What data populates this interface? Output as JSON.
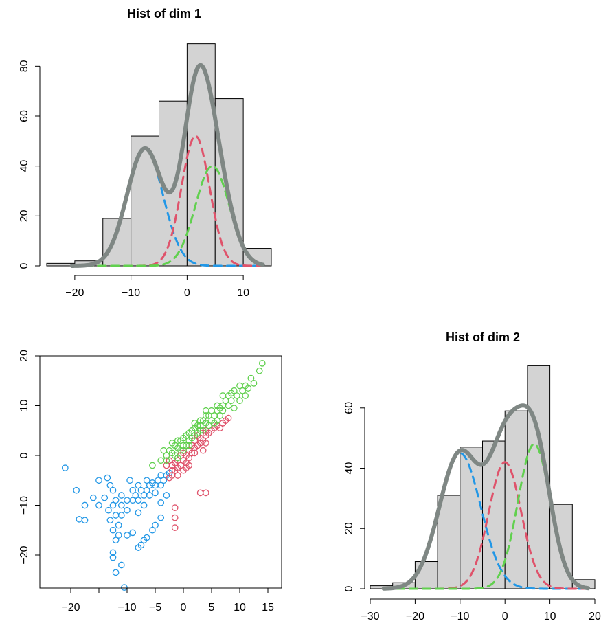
{
  "chart_data": [
    {
      "type": "bar",
      "title": "Hist of dim  1",
      "xlabel": "",
      "ylabel": "",
      "xlim": [
        -25,
        15
      ],
      "ylim": [
        0,
        90
      ],
      "xticks": [
        -20,
        -10,
        0,
        10
      ],
      "yticks": [
        0,
        20,
        40,
        60,
        80
      ],
      "bins": [
        {
          "x0": -25,
          "x1": -20,
          "count": 1
        },
        {
          "x0": -20,
          "x1": -15,
          "count": 2
        },
        {
          "x0": -15,
          "x1": -10,
          "count": 19
        },
        {
          "x0": -10,
          "x1": -5,
          "count": 52
        },
        {
          "x0": -5,
          "x1": 0,
          "count": 66
        },
        {
          "x0": 0,
          "x1": 5,
          "count": 89
        },
        {
          "x0": 5,
          "x1": 10,
          "count": 67
        },
        {
          "x0": 10,
          "x1": 15,
          "count": 7
        }
      ],
      "curves": [
        {
          "name": "component-blue",
          "color": "#2297E6",
          "dash": true,
          "mean": -7.5,
          "sd": 3.2,
          "peak": 47
        },
        {
          "name": "component-red",
          "color": "#DF536B",
          "dash": true,
          "mean": 1.5,
          "sd": 2.5,
          "peak": 52
        },
        {
          "name": "component-green",
          "color": "#61D04F",
          "dash": true,
          "mean": 4.5,
          "sd": 3.0,
          "peak": 40
        },
        {
          "name": "mixture",
          "color": "#7f8784",
          "dash": false,
          "sum": true
        }
      ],
      "grid": false
    },
    {
      "type": "scatter",
      "title": "",
      "xlabel": "",
      "ylabel": "",
      "xlim": [
        -22,
        15
      ],
      "ylim": [
        -28,
        20
      ],
      "xticks": [
        -20,
        -10,
        -5,
        0,
        5,
        10,
        15
      ],
      "xtick_marks": [
        -20,
        -15,
        -10,
        -5,
        0,
        5,
        10,
        15
      ],
      "yticks": [
        -20,
        -10,
        0,
        10,
        20
      ],
      "series": [
        {
          "color": "#2297E6",
          "points": [
            [
              -21,
              -2.5
            ],
            [
              -19,
              -7
            ],
            [
              -18.5,
              -12.8
            ],
            [
              -17.5,
              -10
            ],
            [
              -17.5,
              -13
            ],
            [
              -16,
              -8.5
            ],
            [
              -15,
              -5
            ],
            [
              -15,
              -10
            ],
            [
              -14,
              -8.5
            ],
            [
              -13.5,
              -4.5
            ],
            [
              -13,
              -6
            ],
            [
              -13.3,
              -11
            ],
            [
              -13,
              -13
            ],
            [
              -12.5,
              -7
            ],
            [
              -12.5,
              -10
            ],
            [
              -12,
              -9
            ],
            [
              -12,
              -12
            ],
            [
              -12.5,
              -15
            ],
            [
              -12,
              -17
            ],
            [
              -12.5,
              -19.5
            ],
            [
              -11.5,
              -14
            ],
            [
              -11,
              -8
            ],
            [
              -11,
              -10
            ],
            [
              -11,
              -12
            ],
            [
              -11,
              -22
            ],
            [
              -10.5,
              -26.5
            ],
            [
              -12,
              -23.5
            ],
            [
              -10,
              -9
            ],
            [
              -10,
              -11
            ],
            [
              -9.5,
              -5
            ],
            [
              -9,
              -7
            ],
            [
              -9,
              -9
            ],
            [
              -8.5,
              -8
            ],
            [
              -8,
              -6
            ],
            [
              -8,
              -9
            ],
            [
              -8,
              -11.5
            ],
            [
              -7.5,
              -7
            ],
            [
              -7,
              -8
            ],
            [
              -7,
              -10
            ],
            [
              -6.5,
              -5
            ],
            [
              -6.5,
              -7
            ],
            [
              -6,
              -6
            ],
            [
              -6,
              -8
            ],
            [
              -5.5,
              -5.5
            ],
            [
              -5,
              -6
            ],
            [
              -5,
              -7.5
            ],
            [
              -4.5,
              -5
            ],
            [
              -4,
              -4
            ],
            [
              -4,
              -6
            ],
            [
              -3.5,
              -5
            ],
            [
              -3,
              -4
            ],
            [
              -2.5,
              -3.5
            ],
            [
              -3,
              -8
            ],
            [
              -4,
              -9.5
            ],
            [
              -4,
              -12.5
            ],
            [
              -5,
              -14
            ],
            [
              -5.5,
              -15
            ],
            [
              -6.5,
              -16.5
            ],
            [
              -7.5,
              -18
            ],
            [
              -8,
              -18.5
            ],
            [
              -9,
              -15.5
            ],
            [
              -10,
              -16
            ],
            [
              -11.5,
              -16
            ],
            [
              -12.5,
              -20.5
            ],
            [
              -7,
              -17
            ]
          ]
        },
        {
          "color": "#DF536B",
          "points": [
            [
              -3,
              -2
            ],
            [
              -2.5,
              -1
            ],
            [
              -2,
              -3
            ],
            [
              -2,
              -2
            ],
            [
              -1.5,
              -1.5
            ],
            [
              -1,
              -2.5
            ],
            [
              -1,
              -1
            ],
            [
              -0.5,
              0
            ],
            [
              -0.5,
              -2
            ],
            [
              0,
              -1
            ],
            [
              0,
              0.5
            ],
            [
              0.5,
              -1.5
            ],
            [
              0.5,
              0
            ],
            [
              1,
              1
            ],
            [
              1,
              -0.5
            ],
            [
              1.5,
              0.5
            ],
            [
              1.5,
              2
            ],
            [
              2,
              1.5
            ],
            [
              2,
              3
            ],
            [
              2.5,
              2
            ],
            [
              2.5,
              4
            ],
            [
              3,
              2.5
            ],
            [
              3,
              3.5
            ],
            [
              3.5,
              3
            ],
            [
              3.5,
              4.5
            ],
            [
              4,
              4
            ],
            [
              4,
              5
            ],
            [
              4.5,
              4.5
            ],
            [
              5,
              5
            ],
            [
              5.5,
              5.5
            ],
            [
              6,
              6
            ],
            [
              6.5,
              5.5
            ],
            [
              7,
              6.5
            ],
            [
              7.5,
              7
            ],
            [
              8,
              7.5
            ],
            [
              -1.5,
              -3
            ],
            [
              -2,
              -4
            ],
            [
              -2.5,
              -4.5
            ],
            [
              -1,
              -4
            ],
            [
              0,
              -3
            ],
            [
              3,
              -7.5
            ],
            [
              4,
              -7.5
            ],
            [
              -1.5,
              -10.5
            ],
            [
              -1.5,
              -12.5
            ],
            [
              -1.5,
              -14.5
            ],
            [
              1,
              -2
            ],
            [
              0.5,
              -2.5
            ],
            [
              2,
              0.5
            ],
            [
              3.5,
              1
            ],
            [
              4,
              2.5
            ]
          ]
        },
        {
          "color": "#61D04F",
          "points": [
            [
              14,
              18.5
            ],
            [
              13.5,
              17
            ],
            [
              12,
              15.5
            ],
            [
              11,
              14
            ],
            [
              10.5,
              13
            ],
            [
              10,
              14
            ],
            [
              9.5,
              12
            ],
            [
              9,
              13
            ],
            [
              8.5,
              11
            ],
            [
              8,
              12
            ],
            [
              8,
              10
            ],
            [
              7.5,
              11
            ],
            [
              7,
              9
            ],
            [
              7,
              10
            ],
            [
              6.5,
              8
            ],
            [
              6,
              9
            ],
            [
              6,
              7
            ],
            [
              5.5,
              8
            ],
            [
              5,
              7
            ],
            [
              5,
              9
            ],
            [
              4.5,
              6
            ],
            [
              4.5,
              8
            ],
            [
              4,
              6.5
            ],
            [
              4,
              8
            ],
            [
              3.5,
              5
            ],
            [
              3.5,
              7
            ],
            [
              3,
              5
            ],
            [
              3,
              6
            ],
            [
              2.5,
              4.5
            ],
            [
              2.5,
              6
            ],
            [
              2,
              4
            ],
            [
              2,
              5.5
            ],
            [
              1.5,
              3.5
            ],
            [
              1.5,
              5
            ],
            [
              1,
              3
            ],
            [
              1,
              4.5
            ],
            [
              0.5,
              2
            ],
            [
              0.5,
              4
            ],
            [
              0,
              2
            ],
            [
              0,
              3.5
            ],
            [
              -0.5,
              1
            ],
            [
              -0.5,
              3
            ],
            [
              -1,
              1.5
            ],
            [
              -1,
              3
            ],
            [
              -1.5,
              0
            ],
            [
              -1.5,
              2
            ],
            [
              -2,
              0.5
            ],
            [
              -2.5,
              1
            ],
            [
              -3,
              0
            ],
            [
              -3,
              -1
            ],
            [
              -4,
              -1
            ],
            [
              -5.5,
              -2
            ],
            [
              9,
              9.5
            ],
            [
              10,
              11
            ],
            [
              11,
              12
            ],
            [
              12.5,
              14.5
            ],
            [
              6,
              10
            ],
            [
              7,
              12
            ],
            [
              4,
              9
            ],
            [
              3,
              7
            ],
            [
              5.5,
              6.5
            ],
            [
              6.5,
              9.5
            ],
            [
              8.5,
              12.5
            ],
            [
              -2,
              2.5
            ],
            [
              -3.5,
              1
            ],
            [
              -1,
              -0.5
            ],
            [
              11.5,
              13.5
            ],
            [
              2,
              6.5
            ],
            [
              1,
              2
            ],
            [
              0,
              1
            ]
          ]
        }
      ],
      "grid": false
    },
    {
      "type": "bar",
      "title": "Hist of dim  2",
      "xlabel": "",
      "ylabel": "",
      "xlim": [
        -30,
        20
      ],
      "ylim": [
        0,
        75
      ],
      "xticks": [
        -30,
        -20,
        -10,
        0,
        10,
        20
      ],
      "yticks": [
        0,
        20,
        40,
        60
      ],
      "bins": [
        {
          "x0": -30,
          "x1": -25,
          "count": 1
        },
        {
          "x0": -25,
          "x1": -20,
          "count": 2
        },
        {
          "x0": -20,
          "x1": -15,
          "count": 9
        },
        {
          "x0": -15,
          "x1": -10,
          "count": 31
        },
        {
          "x0": -10,
          "x1": -5,
          "count": 47
        },
        {
          "x0": -5,
          "x1": 0,
          "count": 49
        },
        {
          "x0": 0,
          "x1": 5,
          "count": 59
        },
        {
          "x0": 5,
          "x1": 10,
          "count": 74
        },
        {
          "x0": 10,
          "x1": 15,
          "count": 28
        },
        {
          "x0": 15,
          "x1": 20,
          "count": 3
        }
      ],
      "curves": [
        {
          "name": "component-blue",
          "color": "#2297E6",
          "dash": true,
          "mean": -10,
          "sd": 4.6,
          "peak": 45
        },
        {
          "name": "component-red",
          "color": "#DF536B",
          "dash": true,
          "mean": 0,
          "sd": 3.6,
          "peak": 42
        },
        {
          "name": "component-green",
          "color": "#61D04F",
          "dash": true,
          "mean": 6.5,
          "sd": 3.6,
          "peak": 48
        },
        {
          "name": "mixture",
          "color": "#7f8784",
          "dash": false,
          "sum": true
        }
      ],
      "grid": false
    }
  ]
}
